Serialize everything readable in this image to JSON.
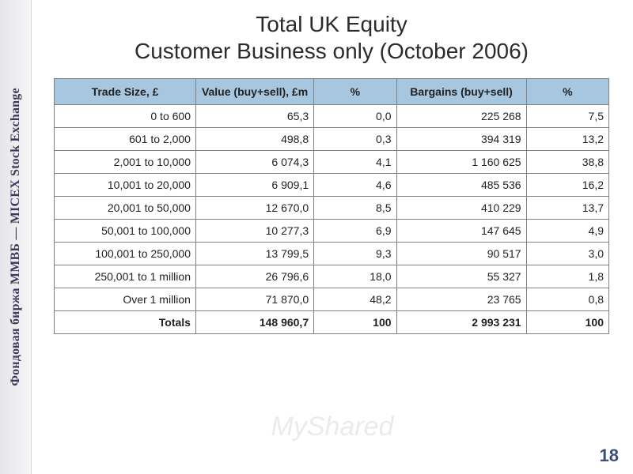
{
  "sidebar": {
    "label": "Фондовая биржа ММВБ — MICEX Stock Exchange"
  },
  "slide": {
    "title_line1": "Total UK Equity",
    "title_line2": "Customer Business only (October 2006)",
    "page_number": "18",
    "watermark": "MyShared"
  },
  "table": {
    "header_bg": "#a7c7e0",
    "border_color": "#808080",
    "columns": [
      "Trade Size, £",
      "Value (buy+sell), £m",
      "%",
      "Bargains (buy+sell)",
      "%"
    ],
    "rows": [
      [
        "0 to 600",
        "65,3",
        "0,0",
        "225 268",
        "7,5"
      ],
      [
        "601 to 2,000",
        "498,8",
        "0,3",
        "394 319",
        "13,2"
      ],
      [
        "2,001 to 10,000",
        "6 074,3",
        "4,1",
        "1 160 625",
        "38,8"
      ],
      [
        "10,001 to 20,000",
        "6 909,1",
        "4,6",
        "485 536",
        "16,2"
      ],
      [
        "20,001 to 50,000",
        "12 670,0",
        "8,5",
        "410 229",
        "13,7"
      ],
      [
        "50,001 to 100,000",
        "10 277,3",
        "6,9",
        "147 645",
        "4,9"
      ],
      [
        "100,001 to 250,000",
        "13 799,5",
        "9,3",
        "90 517",
        "3,0"
      ],
      [
        "250,001 to 1 million",
        "26 796,6",
        "18,0",
        "55 327",
        "1,8"
      ],
      [
        "Over 1 million",
        "71 870,0",
        "48,2",
        "23 765",
        "0,8"
      ]
    ],
    "totals": [
      "Totals",
      "148 960,7",
      "100",
      "2 993 231",
      "100"
    ]
  }
}
